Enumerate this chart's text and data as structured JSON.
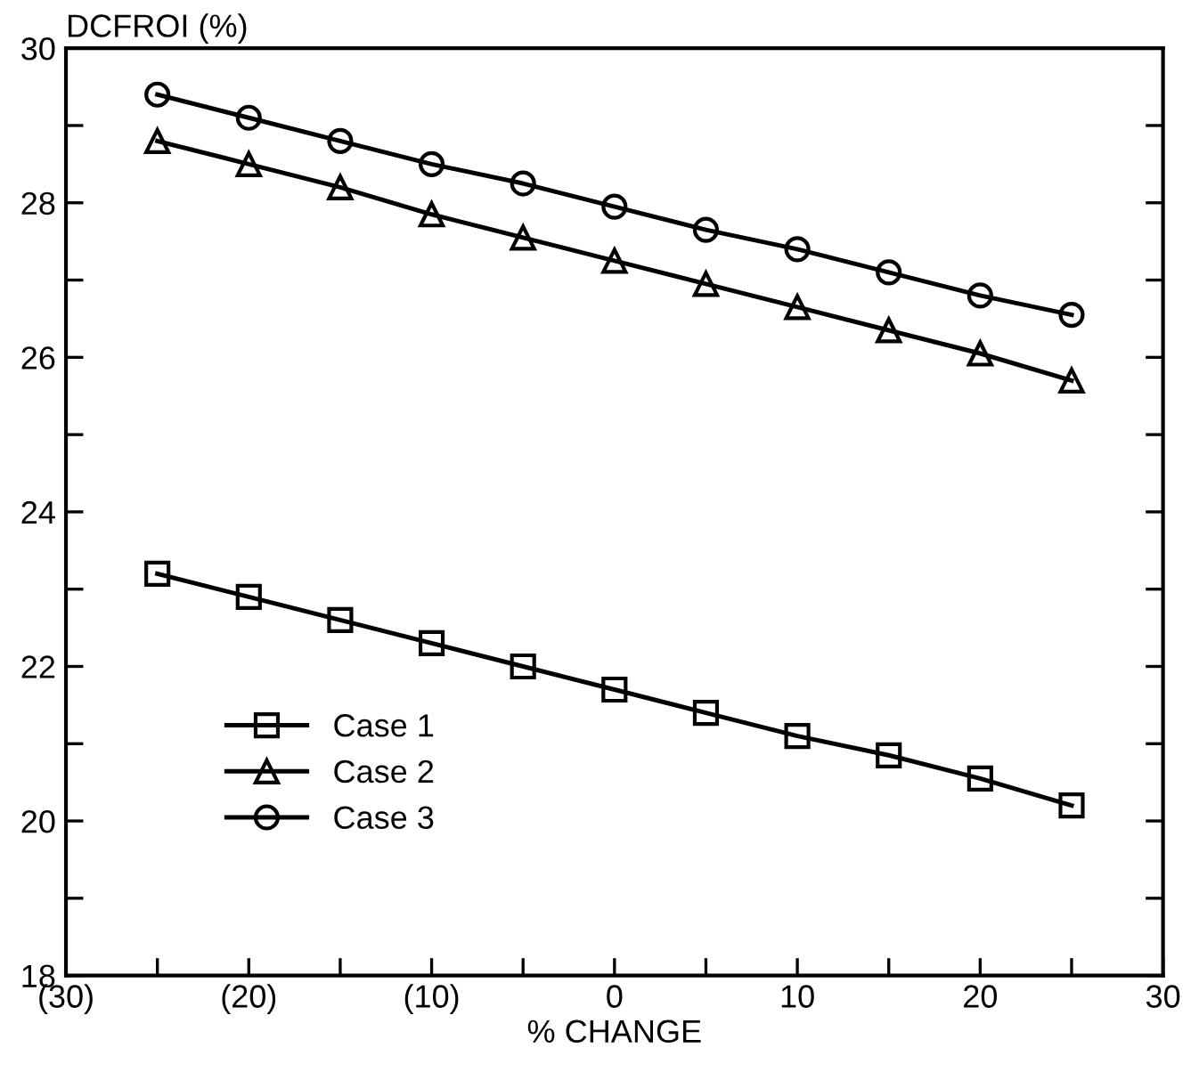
{
  "chart_data": {
    "type": "line",
    "ylabel": "DCFROI (%)",
    "xlabel": "% CHANGE",
    "x": [
      -25,
      -20,
      -15,
      -10,
      -5,
      0,
      5,
      10,
      15,
      20,
      25
    ],
    "series": [
      {
        "name": "Case 1",
        "color": "#000000",
        "marker": "square",
        "values": [
          23.2,
          22.9,
          22.6,
          22.3,
          22.0,
          21.7,
          21.4,
          21.1,
          20.85,
          20.55,
          20.2
        ]
      },
      {
        "name": "Case 2",
        "color": "#000000",
        "marker": "triangle",
        "values": [
          28.8,
          28.5,
          28.2,
          27.85,
          27.55,
          27.25,
          26.95,
          26.65,
          26.35,
          26.05,
          25.7
        ]
      },
      {
        "name": "Case 3",
        "color": "#000000",
        "marker": "circle",
        "values": [
          29.4,
          29.1,
          28.8,
          28.5,
          28.25,
          27.95,
          27.65,
          27.4,
          27.1,
          26.8,
          26.55
        ]
      }
    ],
    "xlim": [
      -30,
      30
    ],
    "xticks": [
      {
        "value": -30,
        "label": "(30)"
      },
      {
        "value": -25,
        "label": null
      },
      {
        "value": -20,
        "label": "(20)"
      },
      {
        "value": -15,
        "label": null
      },
      {
        "value": -10,
        "label": "(10)"
      },
      {
        "value": -5,
        "label": null
      },
      0,
      {
        "value": 5,
        "label": null
      },
      10,
      {
        "value": 15,
        "label": null
      },
      20,
      {
        "value": 25,
        "label": null
      },
      30
    ],
    "ylim": [
      18,
      30
    ],
    "yticks": [
      18,
      {
        "value": 19,
        "label": null
      },
      20,
      {
        "value": 21,
        "label": null
      },
      22,
      {
        "value": 23,
        "label": null
      },
      24,
      {
        "value": 25,
        "label": null
      },
      26,
      {
        "value": 27,
        "label": null
      },
      28,
      {
        "value": 29,
        "label": null
      },
      30
    ],
    "grid": false,
    "legend": "bottom left",
    "line_style": "solid"
  }
}
